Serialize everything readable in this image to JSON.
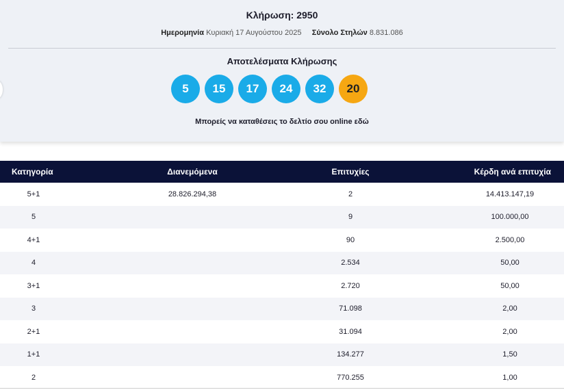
{
  "header": {
    "title": "Κλήρωση: 2950",
    "date_label": "Ημερομηνία",
    "date": "Κυριακή 17 Αυγούστου 2025",
    "columns_label": "Σύνολο Στηλών",
    "columns": "8.831.086"
  },
  "results": {
    "title": "Αποτελέσματα Κλήρωσης",
    "numbers": [
      5,
      15,
      17,
      24,
      32
    ],
    "bonus": 20,
    "note": "Μπορείς να καταθέσεις το δελτίο σου online εδώ"
  },
  "table": {
    "headers": [
      "Κατηγορία",
      "Διανεμόμενα",
      "Επιτυχίες",
      "Κέρδη ανά επιτυχία"
    ],
    "rows": [
      {
        "category": "5+1",
        "distributed": "28.826.294,38",
        "winners": "2",
        "prize": "14.413.147,19"
      },
      {
        "category": "5",
        "winners": "9",
        "prize": "100.000,00"
      },
      {
        "category": "4+1",
        "winners": "90",
        "prize": "2.500,00"
      },
      {
        "category": "4",
        "winners": "2.534",
        "prize": "50,00"
      },
      {
        "category": "3+1",
        "winners": "2.720",
        "prize": "50,00"
      },
      {
        "category": "3",
        "winners": "71.098",
        "prize": "2,00"
      },
      {
        "category": "2+1",
        "winners": "31.094",
        "prize": "2,00"
      },
      {
        "category": "1+1",
        "winners": "134.277",
        "prize": "1,50"
      },
      {
        "category": "2",
        "winners": "770.255",
        "prize": "1,00"
      }
    ]
  }
}
